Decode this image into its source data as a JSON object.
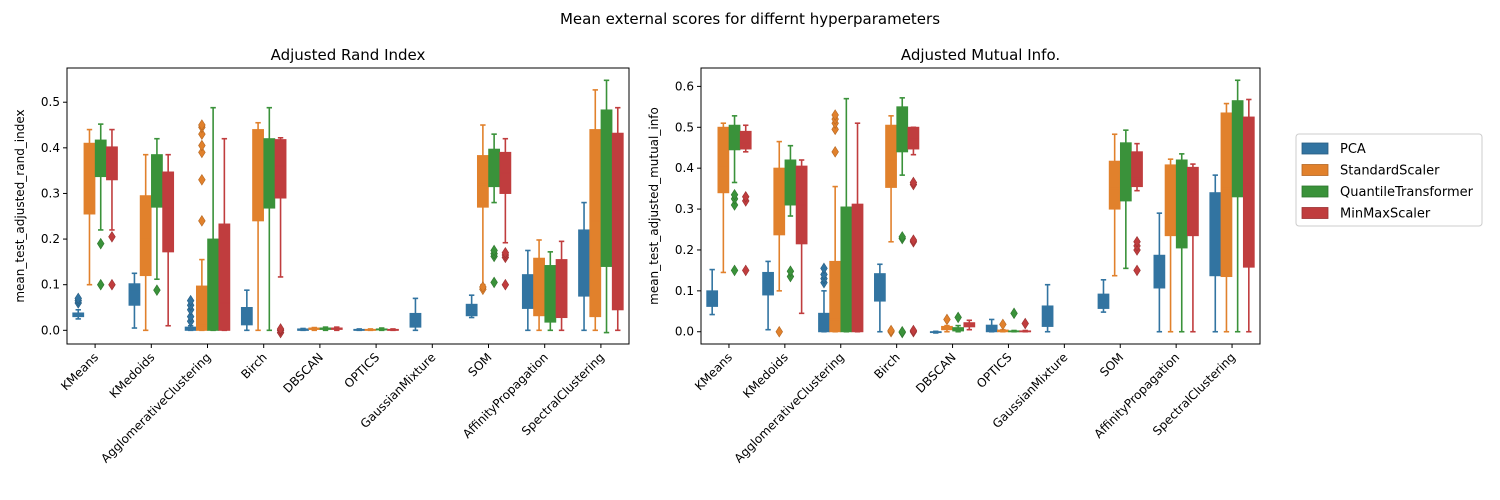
{
  "figure": {
    "suptitle": "Mean external scores for differnt hyperparameters",
    "legend": {
      "placement": "right",
      "entries": [
        "PCA",
        "StandardScaler",
        "QuantileTransformer",
        "MinMaxScaler"
      ]
    }
  },
  "colors": {
    "PCA": "#3274a1",
    "StandardScaler": "#e1812c",
    "QuantileTransformer": "#3a923a",
    "MinMaxScaler": "#c03d3e"
  },
  "chart_data": [
    {
      "type": "box",
      "title": "Adjusted Rand Index",
      "xlabel": "",
      "ylabel": "mean_test_adjusted_rand_index",
      "ylim": [
        -0.03,
        0.575
      ],
      "yticks": [
        0.0,
        0.1,
        0.2,
        0.3,
        0.4,
        0.5
      ],
      "ytick_labels": [
        "0.0",
        "0.1",
        "0.2",
        "0.3",
        "0.4",
        "0.5"
      ],
      "grid": false,
      "categories": [
        "KMeans",
        "KMedoids",
        "AgglomerativeClustering",
        "Birch",
        "DBSCAN",
        "OPTICS",
        "GaussianMixture",
        "SOM",
        "AffinityPropagation",
        "SpectralClustering"
      ],
      "series": [
        {
          "name": "PCA",
          "boxes": [
            {
              "whislo": 0.025,
              "q1": 0.03,
              "med": 0.035,
              "q3": 0.038,
              "whishi": 0.045,
              "fliers": [
                0.06,
                0.065,
                0.07
              ]
            },
            {
              "whislo": 0.005,
              "q1": 0.055,
              "med": 0.085,
              "q3": 0.102,
              "whishi": 0.125,
              "fliers": []
            },
            {
              "whislo": 0.0,
              "q1": 0.0,
              "med": 0.003,
              "q3": 0.007,
              "whishi": 0.01,
              "fliers": [
                0.02,
                0.03,
                0.045,
                0.055,
                0.065
              ]
            },
            {
              "whislo": 0.0,
              "q1": 0.012,
              "med": 0.025,
              "q3": 0.05,
              "whishi": 0.088,
              "fliers": []
            },
            {
              "whislo": 0.0,
              "q1": 0.0,
              "med": 0.001,
              "q3": 0.003,
              "whishi": 0.004,
              "fliers": []
            },
            {
              "whislo": 0.0,
              "q1": 0.0,
              "med": 0.001,
              "q3": 0.002,
              "whishi": 0.003,
              "fliers": []
            },
            {
              "whislo": 0.0,
              "q1": 0.007,
              "med": 0.015,
              "q3": 0.037,
              "whishi": 0.07,
              "fliers": []
            },
            {
              "whislo": 0.028,
              "q1": 0.032,
              "med": 0.042,
              "q3": 0.057,
              "whishi": 0.077,
              "fliers": []
            },
            {
              "whislo": 0.0,
              "q1": 0.048,
              "med": 0.082,
              "q3": 0.122,
              "whishi": 0.175,
              "fliers": []
            },
            {
              "whislo": 0.0,
              "q1": 0.075,
              "med": 0.16,
              "q3": 0.22,
              "whishi": 0.28,
              "fliers": []
            }
          ]
        },
        {
          "name": "StandardScaler",
          "boxes": [
            {
              "whislo": 0.1,
              "q1": 0.255,
              "med": 0.34,
              "q3": 0.41,
              "whishi": 0.44,
              "fliers": []
            },
            {
              "whislo": 0.0,
              "q1": 0.12,
              "med": 0.2,
              "q3": 0.295,
              "whishi": 0.385,
              "fliers": []
            },
            {
              "whislo": 0.0,
              "q1": 0.0,
              "med": 0.01,
              "q3": 0.097,
              "whishi": 0.155,
              "fliers": [
                0.24,
                0.33,
                0.39,
                0.405,
                0.43,
                0.445,
                0.45
              ]
            },
            {
              "whislo": 0.0,
              "q1": 0.24,
              "med": 0.35,
              "q3": 0.44,
              "whishi": 0.455,
              "fliers": []
            },
            {
              "whislo": 0.0,
              "q1": 0.002,
              "med": 0.003,
              "q3": 0.005,
              "whishi": 0.006,
              "fliers": []
            },
            {
              "whislo": 0.0,
              "q1": 0.0,
              "med": 0.001,
              "q3": 0.002,
              "whishi": 0.003,
              "fliers": []
            },
            null,
            {
              "whislo": 0.1,
              "q1": 0.27,
              "med": 0.32,
              "q3": 0.383,
              "whishi": 0.45,
              "fliers": [
                0.09,
                0.095
              ]
            },
            {
              "whislo": 0.0,
              "q1": 0.032,
              "med": 0.08,
              "q3": 0.158,
              "whishi": 0.198,
              "fliers": []
            },
            {
              "whislo": 0.0,
              "q1": 0.03,
              "med": 0.24,
              "q3": 0.44,
              "whishi": 0.527,
              "fliers": []
            }
          ]
        },
        {
          "name": "QuantileTransformer",
          "boxes": [
            {
              "whislo": 0.22,
              "q1": 0.337,
              "med": 0.363,
              "q3": 0.417,
              "whishi": 0.452,
              "fliers": [
                0.1,
                0.19
              ]
            },
            {
              "whislo": 0.112,
              "q1": 0.27,
              "med": 0.342,
              "q3": 0.385,
              "whishi": 0.42,
              "fliers": [
                0.088
              ]
            },
            {
              "whislo": 0.0,
              "q1": 0.0,
              "med": 0.025,
              "q3": 0.2,
              "whishi": 0.488,
              "fliers": []
            },
            {
              "whislo": 0.0,
              "q1": 0.268,
              "med": 0.33,
              "q3": 0.42,
              "whishi": 0.488,
              "fliers": []
            },
            {
              "whislo": 0.0,
              "q1": 0.002,
              "med": 0.004,
              "q3": 0.005,
              "whishi": 0.007,
              "fliers": []
            },
            {
              "whislo": 0.0,
              "q1": 0.001,
              "med": 0.002,
              "q3": 0.003,
              "whishi": 0.005,
              "fliers": []
            },
            null,
            {
              "whislo": 0.28,
              "q1": 0.315,
              "med": 0.36,
              "q3": 0.397,
              "whishi": 0.43,
              "fliers": [
                0.105,
                0.162,
                0.168,
                0.175
              ]
            },
            {
              "whislo": 0.0,
              "q1": 0.018,
              "med": 0.09,
              "q3": 0.142,
              "whishi": 0.172,
              "fliers": []
            },
            {
              "whislo": -0.005,
              "q1": 0.14,
              "med": 0.36,
              "q3": 0.483,
              "whishi": 0.548,
              "fliers": []
            }
          ]
        },
        {
          "name": "MinMaxScaler",
          "boxes": [
            {
              "whislo": 0.22,
              "q1": 0.33,
              "med": 0.375,
              "q3": 0.402,
              "whishi": 0.44,
              "fliers": [
                0.1,
                0.205
              ]
            },
            {
              "whislo": 0.01,
              "q1": 0.172,
              "med": 0.268,
              "q3": 0.347,
              "whishi": 0.385,
              "fliers": []
            },
            {
              "whislo": 0.0,
              "q1": 0.0,
              "med": 0.06,
              "q3": 0.233,
              "whishi": 0.42,
              "fliers": []
            },
            {
              "whislo": 0.117,
              "q1": 0.29,
              "med": 0.36,
              "q3": 0.418,
              "whishi": 0.422,
              "fliers": [
                -0.005,
                0.0,
                0.003
              ]
            },
            {
              "whislo": 0.0,
              "q1": 0.002,
              "med": 0.004,
              "q3": 0.005,
              "whishi": 0.007,
              "fliers": []
            },
            {
              "whislo": 0.0,
              "q1": 0.0,
              "med": 0.001,
              "q3": 0.002,
              "whishi": 0.003,
              "fliers": []
            },
            null,
            {
              "whislo": 0.192,
              "q1": 0.3,
              "med": 0.345,
              "q3": 0.39,
              "whishi": 0.42,
              "fliers": [
                0.1,
                0.16,
                0.165,
                0.17
              ]
            },
            {
              "whislo": 0.0,
              "q1": 0.028,
              "med": 0.1,
              "q3": 0.155,
              "whishi": 0.195,
              "fliers": []
            },
            {
              "whislo": 0.0,
              "q1": 0.045,
              "med": 0.26,
              "q3": 0.432,
              "whishi": 0.488,
              "fliers": []
            }
          ]
        }
      ]
    },
    {
      "type": "box",
      "title": "Adjusted Mutual Info.",
      "xlabel": "",
      "ylabel": "mean_test_adjusted_mutual_info",
      "ylim": [
        -0.03,
        0.645
      ],
      "yticks": [
        0.0,
        0.1,
        0.2,
        0.3,
        0.4,
        0.5,
        0.6
      ],
      "ytick_labels": [
        "0.0",
        "0.1",
        "0.2",
        "0.3",
        "0.4",
        "0.5",
        "0.6"
      ],
      "grid": false,
      "categories": [
        "KMeans",
        "KMedoids",
        "AgglomerativeClustering",
        "Birch",
        "DBSCAN",
        "OPTICS",
        "GaussianMixture",
        "SOM",
        "AffinityPropagation",
        "SpectralClustering"
      ],
      "series": [
        {
          "name": "PCA",
          "boxes": [
            {
              "whislo": 0.042,
              "q1": 0.062,
              "med": 0.08,
              "q3": 0.1,
              "whishi": 0.152,
              "fliers": []
            },
            {
              "whislo": 0.005,
              "q1": 0.09,
              "med": 0.12,
              "q3": 0.145,
              "whishi": 0.172,
              "fliers": []
            },
            {
              "whislo": 0.0,
              "q1": 0.0,
              "med": 0.01,
              "q3": 0.045,
              "whishi": 0.1,
              "fliers": [
                0.12,
                0.13,
                0.14,
                0.155
              ]
            },
            {
              "whislo": 0.0,
              "q1": 0.075,
              "med": 0.11,
              "q3": 0.142,
              "whishi": 0.165,
              "fliers": []
            },
            {
              "whislo": -0.003,
              "q1": -0.002,
              "med": -0.001,
              "q3": 0.0,
              "whishi": 0.001,
              "fliers": []
            },
            {
              "whislo": 0.0,
              "q1": 0.0,
              "med": 0.004,
              "q3": 0.016,
              "whishi": 0.03,
              "fliers": []
            },
            {
              "whislo": 0.0,
              "q1": 0.013,
              "med": 0.03,
              "q3": 0.063,
              "whishi": 0.115,
              "fliers": []
            },
            {
              "whislo": 0.048,
              "q1": 0.057,
              "med": 0.075,
              "q3": 0.092,
              "whishi": 0.127,
              "fliers": []
            },
            {
              "whislo": 0.0,
              "q1": 0.107,
              "med": 0.148,
              "q3": 0.187,
              "whishi": 0.29,
              "fliers": []
            },
            {
              "whislo": 0.0,
              "q1": 0.137,
              "med": 0.22,
              "q3": 0.34,
              "whishi": 0.383,
              "fliers": []
            }
          ]
        },
        {
          "name": "StandardScaler",
          "boxes": [
            {
              "whislo": 0.145,
              "q1": 0.34,
              "med": 0.405,
              "q3": 0.5,
              "whishi": 0.51,
              "fliers": []
            },
            {
              "whislo": 0.1,
              "q1": 0.237,
              "med": 0.34,
              "q3": 0.4,
              "whishi": 0.465,
              "fliers": [
                0.0
              ]
            },
            {
              "whislo": 0.0,
              "q1": 0.0,
              "med": 0.03,
              "q3": 0.172,
              "whishi": 0.355,
              "fliers": [
                0.44,
                0.495,
                0.51,
                0.52,
                0.53
              ]
            },
            {
              "whislo": 0.22,
              "q1": 0.353,
              "med": 0.42,
              "q3": 0.505,
              "whishi": 0.528,
              "fliers": [
                0.0,
                0.003
              ]
            },
            {
              "whislo": 0.0,
              "q1": 0.005,
              "med": 0.01,
              "q3": 0.013,
              "whishi": 0.015,
              "fliers": [
                0.03
              ]
            },
            {
              "whislo": 0.0,
              "q1": 0.0,
              "med": 0.002,
              "q3": 0.004,
              "whishi": 0.005,
              "fliers": [
                0.018
              ]
            },
            null,
            {
              "whislo": 0.137,
              "q1": 0.3,
              "med": 0.35,
              "q3": 0.417,
              "whishi": 0.483,
              "fliers": []
            },
            {
              "whislo": 0.0,
              "q1": 0.235,
              "med": 0.33,
              "q3": 0.408,
              "whishi": 0.422,
              "fliers": []
            },
            {
              "whislo": 0.0,
              "q1": 0.135,
              "med": 0.35,
              "q3": 0.535,
              "whishi": 0.558,
              "fliers": []
            }
          ]
        },
        {
          "name": "QuantileTransformer",
          "boxes": [
            {
              "whislo": 0.365,
              "q1": 0.445,
              "med": 0.47,
              "q3": 0.505,
              "whishi": 0.528,
              "fliers": [
                0.15,
                0.31,
                0.325,
                0.335
              ]
            },
            {
              "whislo": 0.283,
              "q1": 0.31,
              "med": 0.35,
              "q3": 0.42,
              "whishi": 0.455,
              "fliers": [
                0.135,
                0.148
              ]
            },
            {
              "whislo": 0.0,
              "q1": 0.0,
              "med": 0.05,
              "q3": 0.305,
              "whishi": 0.57,
              "fliers": []
            },
            {
              "whislo": 0.383,
              "q1": 0.44,
              "med": 0.52,
              "q3": 0.55,
              "whishi": 0.572,
              "fliers": [
                -0.002,
                0.0,
                0.228,
                0.232
              ]
            },
            {
              "whislo": 0.0,
              "q1": 0.002,
              "med": 0.005,
              "q3": 0.01,
              "whishi": 0.015,
              "fliers": [
                0.035
              ]
            },
            {
              "whislo": 0.0,
              "q1": 0.0,
              "med": 0.001,
              "q3": 0.002,
              "whishi": 0.003,
              "fliers": [
                0.045
              ]
            },
            null,
            {
              "whislo": 0.155,
              "q1": 0.32,
              "med": 0.4,
              "q3": 0.462,
              "whishi": 0.493,
              "fliers": []
            },
            {
              "whislo": 0.0,
              "q1": 0.205,
              "med": 0.35,
              "q3": 0.42,
              "whishi": 0.435,
              "fliers": []
            },
            {
              "whislo": 0.0,
              "q1": 0.33,
              "med": 0.42,
              "q3": 0.565,
              "whishi": 0.615,
              "fliers": []
            }
          ]
        },
        {
          "name": "MinMaxScaler",
          "boxes": [
            {
              "whislo": 0.44,
              "q1": 0.447,
              "med": 0.462,
              "q3": 0.49,
              "whishi": 0.505,
              "fliers": [
                0.15,
                0.32,
                0.33
              ]
            },
            {
              "whislo": 0.045,
              "q1": 0.215,
              "med": 0.31,
              "q3": 0.405,
              "whishi": 0.42,
              "fliers": []
            },
            {
              "whislo": 0.0,
              "q1": 0.0,
              "med": 0.07,
              "q3": 0.312,
              "whishi": 0.51,
              "fliers": []
            },
            {
              "whislo": 0.433,
              "q1": 0.447,
              "med": 0.47,
              "q3": 0.5,
              "whishi": 0.5,
              "fliers": [
                0.0,
                0.003,
                0.22,
                0.224,
                0.36,
                0.365
              ]
            },
            {
              "whislo": 0.005,
              "q1": 0.012,
              "med": 0.018,
              "q3": 0.022,
              "whishi": 0.028,
              "fliers": []
            },
            {
              "whislo": 0.0,
              "q1": 0.0,
              "med": 0.001,
              "q3": 0.002,
              "whishi": 0.003,
              "fliers": [
                0.02
              ]
            },
            null,
            {
              "whislo": 0.345,
              "q1": 0.355,
              "med": 0.375,
              "q3": 0.44,
              "whishi": 0.46,
              "fliers": [
                0.15,
                0.2,
                0.21,
                0.22
              ]
            },
            {
              "whislo": 0.0,
              "q1": 0.235,
              "med": 0.34,
              "q3": 0.402,
              "whishi": 0.41,
              "fliers": []
            },
            {
              "whislo": 0.0,
              "q1": 0.158,
              "med": 0.36,
              "q3": 0.525,
              "whishi": 0.568,
              "fliers": []
            }
          ]
        }
      ]
    }
  ]
}
